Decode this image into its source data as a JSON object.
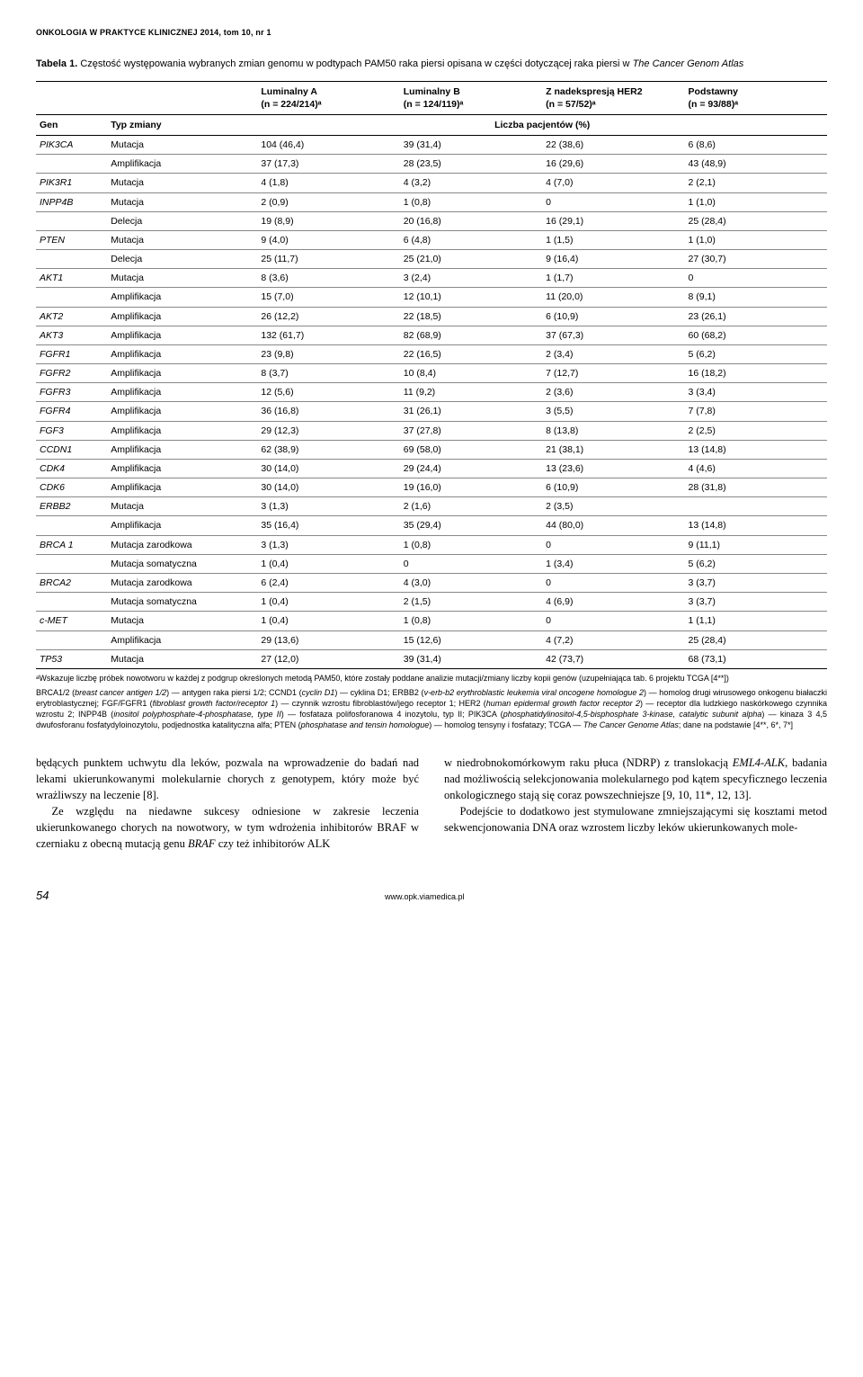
{
  "journal_header": "ONKOLOGIA W PRAKTYCE KLINICZNEJ 2014, tom 10, nr 1",
  "table": {
    "title_prefix": "Tabela 1.",
    "title_rest": " Częstość występowania wybranych zmian genomu w podtypach PAM50 raka piersi opisana w części dotyczącej raka piersi w ",
    "title_ital": "The Cancer Genom Atlas",
    "col_groups": {
      "lumA": {
        "top": "Luminalny A",
        "sub": "(n = 224/214)ᵃ"
      },
      "lumB": {
        "top": "Luminalny B",
        "sub": "(n = 124/119)ᵃ"
      },
      "her2": {
        "top": "Z nadekspresją HER2",
        "sub": "(n = 57/52)ᵃ"
      },
      "basal": {
        "top": "Podstawny",
        "sub": "(n = 93/88)ᵃ"
      }
    },
    "axis": {
      "gen": "Gen",
      "typ": "Typ zmiany",
      "counts": "Liczba pacjentów (%)"
    },
    "rows": [
      {
        "gene": "PIK3CA",
        "type": "Mutacja",
        "a": "104 (46,4)",
        "b": "39 (31,4)",
        "c": "22 (38,6)",
        "d": "6 (8,6)"
      },
      {
        "gene": "",
        "type": "Amplifikacja",
        "a": "37 (17,3)",
        "b": "28 (23,5)",
        "c": "16 (29,6)",
        "d": "43 (48,9)"
      },
      {
        "gene": "PIK3R1",
        "type": "Mutacja",
        "a": "4 (1,8)",
        "b": "4 (3,2)",
        "c": "4 (7,0)",
        "d": "2 (2,1)"
      },
      {
        "gene": "INPP4B",
        "type": "Mutacja",
        "a": "2 (0,9)",
        "b": "1 (0,8)",
        "c": "0",
        "d": "1 (1,0)"
      },
      {
        "gene": "",
        "type": "Delecja",
        "a": "19 (8,9)",
        "b": "20 (16,8)",
        "c": "16 (29,1)",
        "d": "25 (28,4)"
      },
      {
        "gene": "PTEN",
        "type": "Mutacja",
        "a": "9 (4,0)",
        "b": "6 (4,8)",
        "c": "1 (1,5)",
        "d": "1 (1,0)"
      },
      {
        "gene": "",
        "type": "Delecja",
        "a": "25 (11,7)",
        "b": "25 (21,0)",
        "c": "9 (16,4)",
        "d": "27 (30,7)"
      },
      {
        "gene": "AKT1",
        "type": "Mutacja",
        "a": "8 (3,6)",
        "b": "3 (2,4)",
        "c": "1 (1,7)",
        "d": "0"
      },
      {
        "gene": "",
        "type": "Amplifikacja",
        "a": "15 (7,0)",
        "b": "12 (10,1)",
        "c": "11 (20,0)",
        "d": "8 (9,1)"
      },
      {
        "gene": "AKT2",
        "type": "Amplifikacja",
        "a": "26 (12,2)",
        "b": "22 (18,5)",
        "c": "6 (10,9)",
        "d": "23 (26,1)"
      },
      {
        "gene": "AKT3",
        "type": "Amplifikacja",
        "a": "132 (61,7)",
        "b": "82 (68,9)",
        "c": "37 (67,3)",
        "d": "60 (68,2)"
      },
      {
        "gene": "FGFR1",
        "type": "Amplifikacja",
        "a": "23 (9,8)",
        "b": "22 (16,5)",
        "c": "2 (3,4)",
        "d": "5 (6,2)"
      },
      {
        "gene": "FGFR2",
        "type": "Amplifikacja",
        "a": "8 (3,7)",
        "b": "10 (8,4)",
        "c": "7 (12,7)",
        "d": "16 (18,2)"
      },
      {
        "gene": "FGFR3",
        "type": "Amplifikacja",
        "a": "12 (5,6)",
        "b": "11 (9,2)",
        "c": "2 (3,6)",
        "d": "3 (3,4)"
      },
      {
        "gene": "FGFR4",
        "type": "Amplifikacja",
        "a": "36 (16,8)",
        "b": "31 (26,1)",
        "c": "3 (5,5)",
        "d": "7 (7,8)"
      },
      {
        "gene": "FGF3",
        "type": "Amplifikacja",
        "a": "29 (12,3)",
        "b": "37 (27,8)",
        "c": "8 (13,8)",
        "d": "2 (2,5)"
      },
      {
        "gene": "CCDN1",
        "type": "Amplifikacja",
        "a": "62 (38,9)",
        "b": "69 (58,0)",
        "c": "21 (38,1)",
        "d": "13 (14,8)"
      },
      {
        "gene": "CDK4",
        "type": "Amplifikacja",
        "a": "30 (14,0)",
        "b": "29 (24,4)",
        "c": "13 (23,6)",
        "d": "4 (4,6)"
      },
      {
        "gene": "CDK6",
        "type": "Amplifikacja",
        "a": "30 (14,0)",
        "b": "19 (16,0)",
        "c": "6 (10,9)",
        "d": "28 (31,8)"
      },
      {
        "gene": "ERBB2",
        "type": "Mutacja",
        "a": "3 (1,3)",
        "b": "2 (1,6)",
        "c": "2 (3,5)",
        "d": ""
      },
      {
        "gene": "",
        "type": "Amplifikacja",
        "a": "35 (16,4)",
        "b": "35 (29,4)",
        "c": "44 (80,0)",
        "d": "13 (14,8)"
      },
      {
        "gene": "BRCA 1",
        "type": "Mutacja zarodkowa",
        "a": "3 (1,3)",
        "b": "1 (0,8)",
        "c": "0",
        "d": "9 (11,1)"
      },
      {
        "gene": "",
        "type": "Mutacja somatyczna",
        "a": "1 (0,4)",
        "b": "0",
        "c": "1 (3,4)",
        "d": "5 (6,2)"
      },
      {
        "gene": "BRCA2",
        "type": "Mutacja zarodkowa",
        "a": "6 (2,4)",
        "b": "4 (3,0)",
        "c": "0",
        "d": "3 (3,7)"
      },
      {
        "gene": "",
        "type": "Mutacja somatyczna",
        "a": "1 (0,4)",
        "b": "2 (1,5)",
        "c": "4 (6,9)",
        "d": "3 (3,7)"
      },
      {
        "gene": "c-MET",
        "type": "Mutacja",
        "a": "1 (0,4)",
        "b": "1 (0,8)",
        "c": "0",
        "d": "1 (1,1)"
      },
      {
        "gene": "",
        "type": "Amplifikacja",
        "a": "29 (13,6)",
        "b": "15 (12,6)",
        "c": "4 (7,2)",
        "d": "25 (28,4)"
      },
      {
        "gene": "TP53",
        "type": "Mutacja",
        "a": "27 (12,0)",
        "b": "39 (31,4)",
        "c": "42 (73,7)",
        "d": "68 (73,1)"
      }
    ]
  },
  "footnote_a": "ᵃWskazuje liczbę próbek nowotworu w każdej z podgrup określonych metodą PAM50, które zostały poddane analizie mutacji/zmiany liczby kopii genów (uzupełniająca tab. 6 projektu TCGA [4**])",
  "body": {
    "left_p1": "będących punktem uchwytu dla leków, pozwala na wprowadzenie do badań nad lekami ukierunkowanymi molekularnie chorych z genotypem, który może być wrażliwszy na leczenie [8].",
    "right_p1": "w niedrobnokomórkowym raku płuca (NDRP) z translokacją EML4-ALK, badania nad możliwością selekcjonowania molekularnego pod kątem specyficznego leczenia onkologicznego stają się coraz powszechniejsze [9, 10, 11*, 12, 13].",
    "right_p2": "Podejście to dodatkowo jest stymulowane zmniejszającymi się kosztami metod sekwencjonowania DNA oraz wzrostem liczby leków ukierunkowanych mole-"
  },
  "footer": {
    "page": "54",
    "url": "www.opk.viamedica.pl"
  }
}
